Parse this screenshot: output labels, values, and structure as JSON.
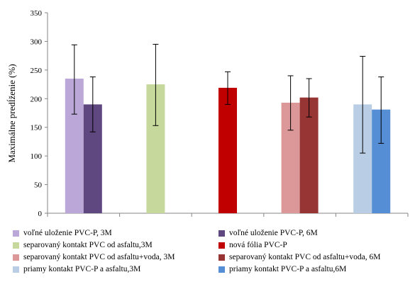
{
  "chart_data": {
    "type": "bar",
    "ylabel": "Maximálne predĺženie  (%)",
    "ylim": [
      0,
      350
    ],
    "yticks": [
      "0",
      "50",
      "100",
      "150",
      "200",
      "250",
      "300",
      "350"
    ],
    "grid": false,
    "legend_position": "bottom",
    "groups": [
      {
        "bars": [
          {
            "series": "voľné uloženie PVC-P,  3M",
            "value": 235,
            "err_low": 173,
            "err_high": 294,
            "color": "#bca8d8"
          },
          {
            "series": "voľné uloženie PVC-P,  6M",
            "value": 190,
            "err_low": 142,
            "err_high": 238,
            "color": "#5f4780"
          }
        ]
      },
      {
        "bars": [
          {
            "series": "separovaný kontakt PVC od asfaltu,3M",
            "value": 225,
            "err_low": 153,
            "err_high": 295,
            "color": "#c6d89c"
          }
        ]
      },
      {
        "bars": [
          {
            "series": "nová fólia PVC-P",
            "value": 219,
            "err_low": 190,
            "err_high": 247,
            "color": "#c00000"
          }
        ]
      },
      {
        "bars": [
          {
            "series": "separovaný kontakt PVC od asfaltu+voda, 3M",
            "value": 193,
            "err_low": 145,
            "err_high": 240,
            "color": "#dc9898"
          },
          {
            "series": "separovaný kontakt PVC od asfaltu+voda, 6M",
            "value": 202,
            "err_low": 168,
            "err_high": 235,
            "color": "#973434"
          }
        ]
      },
      {
        "bars": [
          {
            "series": "priamy kontakt PVC-P a asfaltu,3M",
            "value": 190,
            "err_low": 105,
            "err_high": 274,
            "color": "#b9cde5"
          },
          {
            "series": "priamy kontakt PVC-P a asfaltu,6M",
            "value": 181,
            "err_low": 122,
            "err_high": 238,
            "color": "#558ed5"
          }
        ]
      }
    ],
    "legend": [
      {
        "label": "voľné uloženie PVC-P,  3M",
        "color": "#bca8d8"
      },
      {
        "label": "voľné uloženie PVC-P,  6M",
        "color": "#5f4780"
      },
      {
        "label": "separovaný kontakt PVC od asfaltu,3M",
        "color": "#c6d89c"
      },
      {
        "label": "nová fólia PVC-P",
        "color": "#c00000"
      },
      {
        "label": "separovaný kontakt PVC od asfaltu+voda, 3M",
        "color": "#dc9898"
      },
      {
        "label": "separovaný kontakt PVC od asfaltu+voda, 6M",
        "color": "#973434"
      },
      {
        "label": "priamy kontakt PVC-P a asfaltu,3M",
        "color": "#b9cde5"
      },
      {
        "label": "priamy kontakt PVC-P a asfaltu,6M",
        "color": "#558ed5"
      }
    ]
  }
}
